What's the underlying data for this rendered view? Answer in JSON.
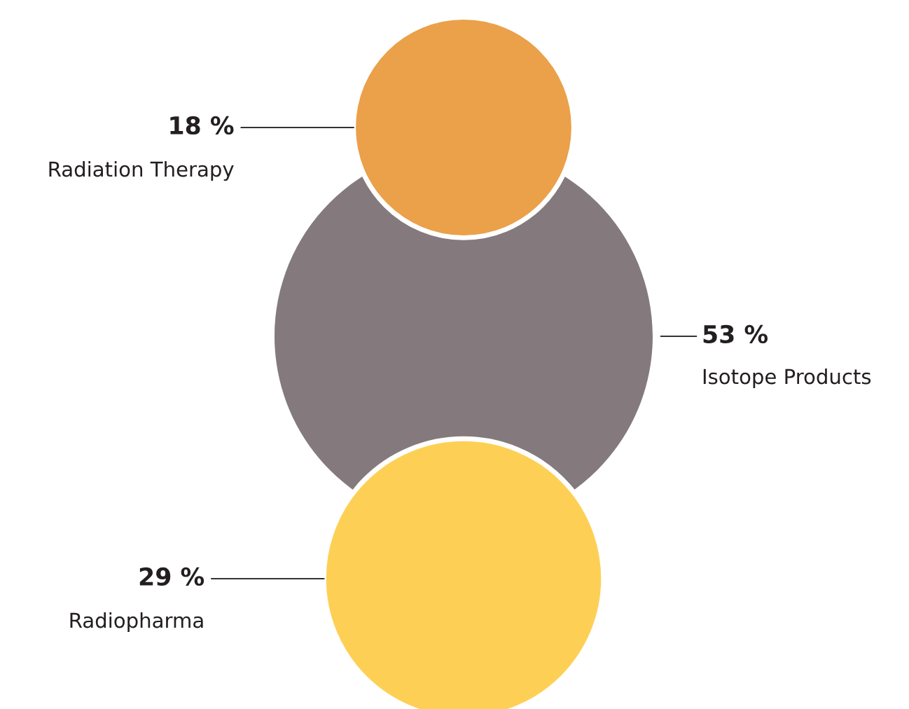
{
  "chart_data": {
    "type": "other",
    "categories": [
      "Radiation Therapy",
      "Isotope Products",
      "Radiopharma"
    ],
    "values": [
      18,
      53,
      29
    ],
    "value_labels": [
      "18 %",
      "53 %",
      "29 %"
    ],
    "colors": [
      "#eba04a",
      "#847a7e",
      "#fdd055"
    ]
  }
}
